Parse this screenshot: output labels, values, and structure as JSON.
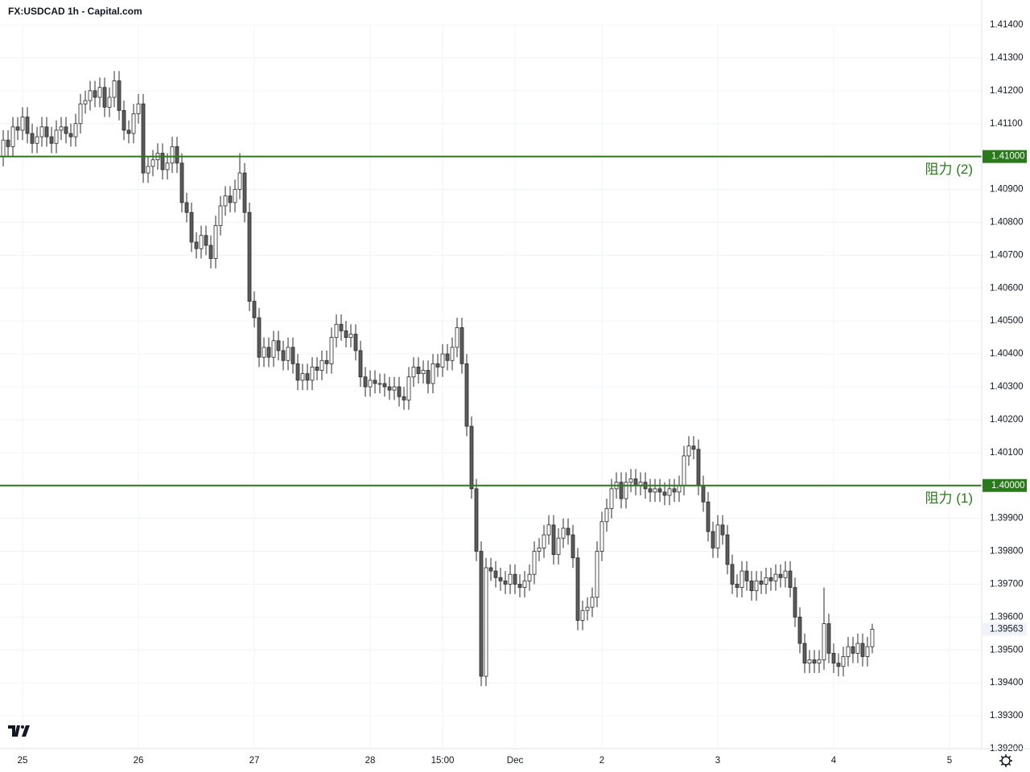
{
  "chart_data": {
    "type": "candlestick",
    "title": "FX:USDCAD 1h - Capital.com",
    "open": [
      1.41,
      1.4105,
      1.4103,
      1.4109,
      1.4108,
      1.4112,
      1.4107,
      1.4104,
      1.4106,
      1.4109,
      1.4106,
      1.4104,
      1.4108,
      1.4109,
      1.4107,
      1.4106,
      1.411,
      1.4116,
      1.4117,
      1.412,
      1.4118,
      1.4121,
      1.4115,
      1.4118,
      1.4123,
      1.4114,
      1.4108,
      1.4107,
      1.4113,
      1.4116,
      1.4095,
      1.4097,
      1.4099,
      1.4101,
      1.4096,
      1.4098,
      1.4103,
      1.4098,
      1.4086,
      1.4083,
      1.4074,
      1.4072,
      1.4076,
      1.4073,
      1.4069,
      1.4079,
      1.4085,
      1.4088,
      1.4086,
      1.409,
      1.4095,
      1.4083,
      1.4056,
      1.4051,
      1.4039,
      1.4042,
      1.4039,
      1.4044,
      1.4041,
      1.4038,
      1.4042,
      1.4037,
      1.4032,
      1.4034,
      1.4032,
      1.4036,
      1.4035,
      1.4038,
      1.4037,
      1.4045,
      1.4049,
      1.4047,
      1.4045,
      1.4046,
      1.4041,
      1.4033,
      1.403,
      1.4032,
      1.4031,
      1.4031,
      1.403,
      1.4029,
      1.403,
      1.4027,
      1.4026,
      1.4033,
      1.4036,
      1.4034,
      1.4035,
      1.4031,
      1.4037,
      1.4036,
      1.404,
      1.4038,
      1.4042,
      1.4048,
      1.4037,
      1.4018,
      1.3999,
      1.398,
      1.3942,
      1.3975,
      1.3974,
      1.3972,
      1.3971,
      1.397,
      1.3973,
      1.397,
      1.3969,
      1.3971,
      1.3973,
      1.398,
      1.3981,
      1.3985,
      1.3988,
      1.3979,
      1.3984,
      1.3987,
      1.3985,
      1.3978,
      1.3959,
      1.3962,
      1.3963,
      1.3966,
      1.398,
      1.3989,
      1.3993,
      1.3999,
      1.4001,
      1.3996,
      1.4001,
      1.4002,
      1.4,
      1.4001,
      1.3999,
      1.3998,
      1.3999,
      1.3998,
      1.3997,
      1.3999,
      1.3998,
      1.4,
      1.4009,
      1.4012,
      1.4011,
      1.4,
      1.3995,
      1.3986,
      1.3981,
      1.3988,
      1.3985,
      1.3976,
      1.397,
      1.3969,
      1.3974,
      1.3971,
      1.3968,
      1.3971,
      1.397,
      1.3972,
      1.3971,
      1.3973,
      1.3972,
      1.3974,
      1.3969,
      1.396,
      1.3952,
      1.3946,
      1.3947,
      1.3946,
      1.3947,
      1.3958,
      1.3949,
      1.3946,
      1.3945,
      1.3948,
      1.3951,
      1.3949,
      1.3952,
      1.3948,
      1.3951
    ],
    "high": [
      1.4108,
      1.4108,
      1.4112,
      1.4112,
      1.4115,
      1.4115,
      1.411,
      1.4109,
      1.4112,
      1.4112,
      1.4109,
      1.4111,
      1.4112,
      1.4112,
      1.411,
      1.4113,
      1.4119,
      1.412,
      1.4123,
      1.4123,
      1.4124,
      1.4124,
      1.4121,
      1.4126,
      1.4126,
      1.4117,
      1.4111,
      1.4116,
      1.4119,
      1.4119,
      1.41,
      1.4102,
      1.4104,
      1.4104,
      1.4101,
      1.4106,
      1.4106,
      1.4101,
      1.4089,
      1.4086,
      1.4077,
      1.4079,
      1.4079,
      1.4076,
      1.4082,
      1.4088,
      1.4091,
      1.4091,
      1.4093,
      1.4101,
      1.4098,
      1.4086,
      1.4059,
      1.4054,
      1.4045,
      1.4045,
      1.4047,
      1.4047,
      1.4044,
      1.4045,
      1.4045,
      1.404,
      1.4037,
      1.4037,
      1.4039,
      1.4039,
      1.4041,
      1.4041,
      1.4048,
      1.4052,
      1.4052,
      1.405,
      1.4049,
      1.4049,
      1.4044,
      1.4036,
      1.4035,
      1.4035,
      1.4034,
      1.4034,
      1.4033,
      1.4033,
      1.4033,
      1.403,
      1.4036,
      1.4039,
      1.4039,
      1.4038,
      1.4038,
      1.404,
      1.404,
      1.4043,
      1.4043,
      1.4045,
      1.4051,
      1.4051,
      1.404,
      1.4021,
      1.4002,
      1.3983,
      1.3978,
      1.3978,
      1.3977,
      1.3975,
      1.3974,
      1.3976,
      1.3976,
      1.3973,
      1.3974,
      1.3976,
      1.3983,
      1.3984,
      1.3988,
      1.3991,
      1.3991,
      1.3987,
      1.399,
      1.399,
      1.3988,
      1.3981,
      1.3965,
      1.3966,
      1.3969,
      1.3983,
      1.3992,
      1.3996,
      1.4002,
      1.4004,
      1.4004,
      1.4004,
      1.4005,
      1.4005,
      1.4004,
      1.4004,
      1.4002,
      1.4002,
      1.4002,
      1.4001,
      1.4002,
      1.4002,
      1.4003,
      1.4012,
      1.4015,
      1.4015,
      1.4014,
      1.4003,
      1.3998,
      1.3989,
      1.3991,
      1.3991,
      1.3988,
      1.3979,
      1.3973,
      1.3977,
      1.3977,
      1.3974,
      1.3974,
      1.3974,
      1.3975,
      1.3975,
      1.3976,
      1.3976,
      1.3977,
      1.3977,
      1.3972,
      1.3963,
      1.3955,
      1.395,
      1.395,
      1.395,
      1.3969,
      1.3961,
      1.3952,
      1.3949,
      1.3951,
      1.3954,
      1.3954,
      1.3955,
      1.3955,
      1.3954,
      1.3958
    ],
    "low": [
      1.4097,
      1.41,
      1.41,
      1.4105,
      1.4105,
      1.4104,
      1.4101,
      1.4101,
      1.4103,
      1.4103,
      1.4101,
      1.4101,
      1.4105,
      1.4104,
      1.4103,
      1.4103,
      1.4107,
      1.4113,
      1.4114,
      1.4115,
      1.4115,
      1.4112,
      1.4112,
      1.4115,
      1.4111,
      1.4105,
      1.4104,
      1.4104,
      1.411,
      1.4092,
      1.4092,
      1.4094,
      1.4096,
      1.4093,
      1.4093,
      1.4095,
      1.4095,
      1.4083,
      1.408,
      1.4071,
      1.4069,
      1.4069,
      1.407,
      1.4066,
      1.4066,
      1.4076,
      1.4082,
      1.4083,
      1.4083,
      1.4087,
      1.408,
      1.4053,
      1.4048,
      1.4036,
      1.4036,
      1.4036,
      1.4036,
      1.4038,
      1.4035,
      1.4035,
      1.4034,
      1.4029,
      1.4029,
      1.4029,
      1.4029,
      1.4032,
      1.4032,
      1.4034,
      1.4034,
      1.4042,
      1.4044,
      1.4042,
      1.4042,
      1.4038,
      1.403,
      1.4027,
      1.4027,
      1.4028,
      1.4028,
      1.4027,
      1.4026,
      1.4026,
      1.4024,
      1.4023,
      1.4023,
      1.403,
      1.4031,
      1.4031,
      1.4028,
      1.4028,
      1.4033,
      1.4033,
      1.4035,
      1.4035,
      1.4039,
      1.4034,
      1.4015,
      1.3996,
      1.3977,
      1.3939,
      1.3939,
      1.3971,
      1.3969,
      1.3968,
      1.3967,
      1.3967,
      1.3967,
      1.3966,
      1.3966,
      1.3968,
      1.397,
      1.3977,
      1.3978,
      1.3982,
      1.3976,
      1.3976,
      1.3981,
      1.3982,
      1.3975,
      1.3956,
      1.3956,
      1.3959,
      1.396,
      1.3963,
      1.3977,
      1.3986,
      1.399,
      1.3996,
      1.3993,
      1.3993,
      1.3998,
      1.3997,
      1.3997,
      1.3996,
      1.3995,
      1.3995,
      1.3995,
      1.3994,
      1.3994,
      1.3995,
      1.3995,
      1.3997,
      1.4006,
      1.4008,
      1.3997,
      1.3992,
      1.3983,
      1.3978,
      1.3978,
      1.3982,
      1.3973,
      1.3967,
      1.3966,
      1.3966,
      1.3968,
      1.3965,
      1.3965,
      1.3967,
      1.3967,
      1.3968,
      1.3968,
      1.3969,
      1.3969,
      1.3966,
      1.3957,
      1.3949,
      1.3943,
      1.3943,
      1.3943,
      1.3943,
      1.3944,
      1.3946,
      1.3943,
      1.3942,
      1.3942,
      1.3945,
      1.3946,
      1.3946,
      1.3945,
      1.3945,
      1.3949
    ],
    "close": [
      1.4105,
      1.4103,
      1.4109,
      1.4108,
      1.4112,
      1.4107,
      1.4104,
      1.4106,
      1.4109,
      1.4106,
      1.4104,
      1.4108,
      1.4109,
      1.4107,
      1.4106,
      1.411,
      1.4116,
      1.4117,
      1.412,
      1.4118,
      1.4121,
      1.4115,
      1.4118,
      1.4123,
      1.4114,
      1.4108,
      1.4107,
      1.4113,
      1.4116,
      1.4095,
      1.4097,
      1.4099,
      1.4101,
      1.4096,
      1.4098,
      1.4103,
      1.4098,
      1.4086,
      1.4083,
      1.4074,
      1.4072,
      1.4076,
      1.4073,
      1.4069,
      1.4079,
      1.4085,
      1.4088,
      1.4086,
      1.409,
      1.4095,
      1.4083,
      1.4056,
      1.4051,
      1.4039,
      1.4042,
      1.4039,
      1.4044,
      1.4041,
      1.4038,
      1.4042,
      1.4037,
      1.4032,
      1.4034,
      1.4032,
      1.4036,
      1.4035,
      1.4038,
      1.4037,
      1.4045,
      1.4049,
      1.4047,
      1.4045,
      1.4046,
      1.4041,
      1.4033,
      1.403,
      1.4032,
      1.4031,
      1.4031,
      1.403,
      1.4029,
      1.403,
      1.4027,
      1.4026,
      1.4033,
      1.4036,
      1.4034,
      1.4035,
      1.4031,
      1.4037,
      1.4036,
      1.404,
      1.4038,
      1.4042,
      1.4048,
      1.4037,
      1.4018,
      1.3999,
      1.398,
      1.3942,
      1.3975,
      1.3974,
      1.3972,
      1.3971,
      1.397,
      1.3973,
      1.397,
      1.3969,
      1.3971,
      1.3973,
      1.398,
      1.3981,
      1.3985,
      1.3988,
      1.3979,
      1.3984,
      1.3987,
      1.3985,
      1.3978,
      1.3959,
      1.3962,
      1.3963,
      1.3966,
      1.398,
      1.3989,
      1.3993,
      1.3999,
      1.4001,
      1.3996,
      1.4001,
      1.4002,
      1.4,
      1.4001,
      1.3999,
      1.3998,
      1.3999,
      1.3998,
      1.3997,
      1.3999,
      1.3998,
      1.4,
      1.4009,
      1.4012,
      1.4011,
      1.4,
      1.3995,
      1.3986,
      1.3981,
      1.3988,
      1.3985,
      1.3976,
      1.397,
      1.3969,
      1.3974,
      1.3971,
      1.3968,
      1.3971,
      1.397,
      1.3972,
      1.3971,
      1.3973,
      1.3972,
      1.3974,
      1.3969,
      1.396,
      1.3952,
      1.3946,
      1.3947,
      1.3946,
      1.3947,
      1.3958,
      1.3949,
      1.3946,
      1.3945,
      1.3948,
      1.3951,
      1.3949,
      1.3952,
      1.3948,
      1.3951,
      1.39563
    ],
    "up_color": "#ffffff",
    "down_color": "#5b5b5b",
    "wick_color": "#2a2a2a",
    "ylim": [
      1.392,
      1.414
    ],
    "yticks": [
      {
        "value": 1.392,
        "label": "1.39200"
      },
      {
        "value": 1.393,
        "label": "1.39300"
      },
      {
        "value": 1.394,
        "label": "1.39400"
      },
      {
        "value": 1.395,
        "label": "1.39500"
      },
      {
        "value": 1.396,
        "label": "1.39600"
      },
      {
        "value": 1.397,
        "label": "1.39700"
      },
      {
        "value": 1.398,
        "label": "1.39800"
      },
      {
        "value": 1.399,
        "label": "1.39900"
      },
      {
        "value": 1.4,
        "label": "1.40000"
      },
      {
        "value": 1.401,
        "label": "1.40100"
      },
      {
        "value": 1.402,
        "label": "1.40200"
      },
      {
        "value": 1.403,
        "label": "1.40300"
      },
      {
        "value": 1.404,
        "label": "1.40400"
      },
      {
        "value": 1.405,
        "label": "1.40500"
      },
      {
        "value": 1.406,
        "label": "1.40600"
      },
      {
        "value": 1.407,
        "label": "1.40700"
      },
      {
        "value": 1.408,
        "label": "1.40800"
      },
      {
        "value": 1.409,
        "label": "1.40900"
      },
      {
        "value": 1.41,
        "label": "1.41000"
      },
      {
        "value": 1.411,
        "label": "1.41100"
      },
      {
        "value": 1.412,
        "label": "1.41200"
      },
      {
        "value": 1.413,
        "label": "1.41300"
      },
      {
        "value": 1.414,
        "label": "1.41400"
      }
    ],
    "xlim": [
      -0.67,
      202.67
    ],
    "xticks": [
      {
        "value": 4,
        "label": "25"
      },
      {
        "value": 28,
        "label": "26"
      },
      {
        "value": 52,
        "label": "27"
      },
      {
        "value": 76,
        "label": "28"
      },
      {
        "value": 91,
        "label": "15:00"
      },
      {
        "value": 106,
        "label": "Dec"
      },
      {
        "value": 124,
        "label": "2"
      },
      {
        "value": 148,
        "label": "3"
      },
      {
        "value": 172,
        "label": "4"
      },
      {
        "value": 196,
        "label": "5"
      }
    ],
    "grid": true,
    "levels": [
      {
        "value": 1.41,
        "label": "1.41000",
        "text": "阻力 (2)",
        "color": "#2a7a1c"
      },
      {
        "value": 1.4,
        "label": "1.40000",
        "text": "阻力 (1)",
        "color": "#2a7a1c"
      }
    ]
  }
}
